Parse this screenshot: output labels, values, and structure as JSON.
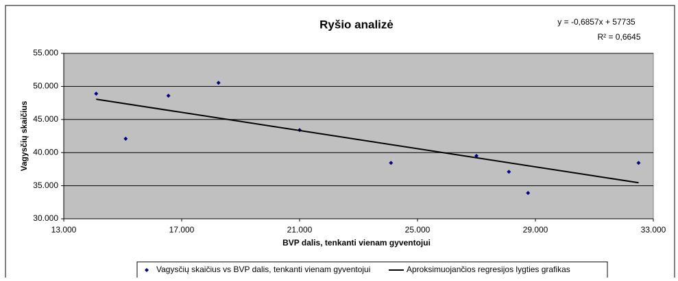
{
  "chart_data": {
    "type": "scatter",
    "title": "Ryšio analizė",
    "x_label": "BVP dalis, tenkanti vienam gyventojui",
    "y_label": "Vagysčių skaičius",
    "annotations": [
      "y = -0,6857x + 57735",
      "R² = 0,6645"
    ],
    "series": [
      {
        "name": "Vagysčių skaičius vs BVP dalis, tenkanti vienam gyventojui",
        "color": "#000080",
        "mode": "markers",
        "x": [
          14100,
          15100,
          16550,
          18250,
          21000,
          24100,
          27000,
          28100,
          28750,
          32500
        ],
        "values": [
          48900,
          42100,
          48600,
          50550,
          43400,
          38450,
          39500,
          37100,
          33900,
          38450
        ]
      },
      {
        "name": "Aproksimuojančios regresijos lygties grafikas",
        "color": "#000000",
        "mode": "line",
        "x": [
          14100,
          32500
        ],
        "values": [
          48067,
          35450
        ]
      }
    ],
    "xlim": [
      13000,
      33000
    ],
    "xticks": [
      {
        "value": 13000,
        "label": "13.000"
      },
      {
        "value": 17000,
        "label": "17.000"
      },
      {
        "value": 21000,
        "label": "21.000"
      },
      {
        "value": 25000,
        "label": "25.000"
      },
      {
        "value": 29000,
        "label": "29.000"
      },
      {
        "value": 33000,
        "label": "33.000"
      }
    ],
    "ylim": [
      30000,
      55000
    ],
    "yticks": [
      {
        "value": 30000,
        "label": "30.000"
      },
      {
        "value": 35000,
        "label": "35.000"
      },
      {
        "value": 40000,
        "label": "40.000"
      },
      {
        "value": 45000,
        "label": "45.000"
      },
      {
        "value": 50000,
        "label": "50.000"
      },
      {
        "value": 55000,
        "label": "55.000"
      }
    ],
    "grid": true,
    "legend": "bottom"
  }
}
